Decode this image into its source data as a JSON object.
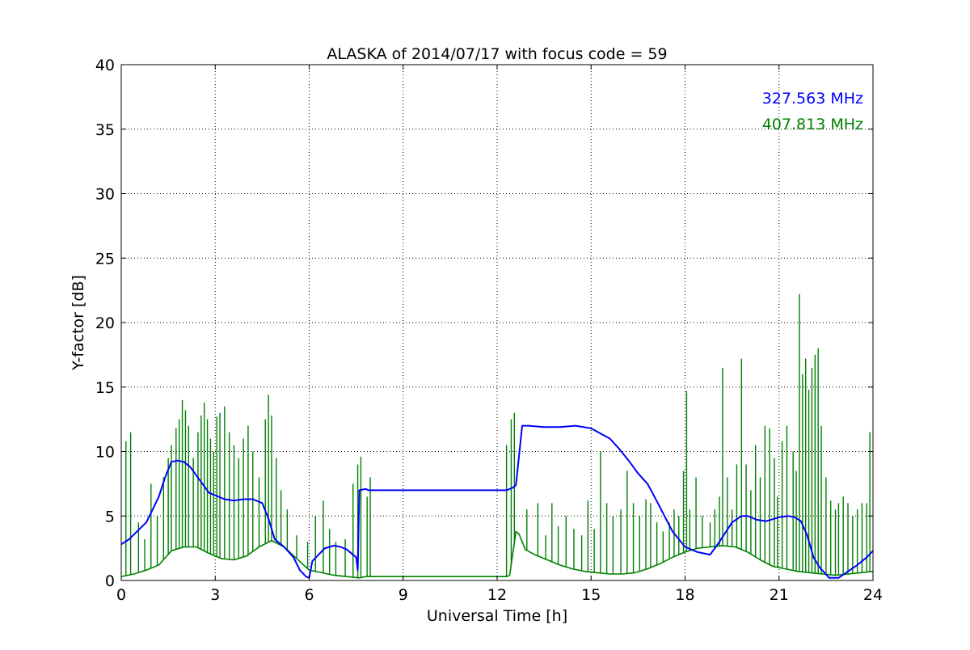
{
  "chart_data": {
    "type": "line",
    "title": "ALASKA of 2014/07/17 with focus code = 59",
    "xlabel": "Universal Time [h]",
    "ylabel": "Y-factor [dB]",
    "xlim": [
      0,
      24
    ],
    "ylim": [
      0,
      40
    ],
    "xticks": [
      0,
      3,
      6,
      9,
      12,
      15,
      18,
      21,
      24
    ],
    "yticks": [
      0,
      5,
      10,
      15,
      20,
      25,
      30,
      35,
      40
    ],
    "grid": true,
    "legend_position": "top-right",
    "series": [
      {
        "name": "327.563 MHz",
        "color": "#0000ff",
        "x": [
          0,
          0.25,
          0.5,
          0.8,
          1.0,
          1.2,
          1.4,
          1.6,
          1.8,
          2.0,
          2.2,
          2.5,
          2.8,
          3.0,
          3.3,
          3.6,
          3.9,
          4.2,
          4.5,
          4.7,
          4.9,
          5.2,
          5.5,
          5.7,
          5.9,
          6.0,
          6.1,
          6.3,
          6.5,
          6.8,
          7.0,
          7.2,
          7.5,
          7.55,
          7.6,
          7.8,
          7.9,
          8.0,
          12.3,
          12.5,
          12.6,
          12.8,
          13.0,
          13.5,
          14.0,
          14.5,
          15.0,
          15.3,
          15.6,
          15.9,
          16.2,
          16.5,
          16.8,
          17.0,
          17.3,
          17.6,
          18.0,
          18.4,
          18.8,
          19.1,
          19.5,
          19.8,
          20.0,
          20.3,
          20.6,
          21.0,
          21.3,
          21.5,
          21.7,
          21.9,
          22.1,
          22.3,
          22.6,
          22.9,
          23.2,
          23.5,
          23.8,
          24.0
        ],
        "y": [
          2.8,
          3.2,
          3.8,
          4.5,
          5.5,
          6.5,
          8.0,
          9.2,
          9.3,
          9.2,
          8.8,
          7.8,
          6.8,
          6.6,
          6.3,
          6.2,
          6.3,
          6.3,
          6.0,
          4.8,
          3.2,
          2.6,
          1.8,
          0.8,
          0.3,
          0.2,
          1.5,
          2.0,
          2.5,
          2.7,
          2.6,
          2.4,
          1.8,
          0.8,
          7.0,
          7.1,
          7.0,
          7.0,
          7.0,
          7.2,
          7.4,
          12.0,
          12.0,
          11.9,
          11.9,
          12.0,
          11.8,
          11.4,
          11.0,
          10.2,
          9.3,
          8.3,
          7.5,
          6.6,
          5.2,
          3.8,
          2.6,
          2.2,
          2.0,
          3.0,
          4.5,
          5.0,
          5.0,
          4.7,
          4.6,
          4.9,
          5.0,
          4.9,
          4.6,
          3.5,
          1.8,
          1.0,
          0.2,
          0.2,
          0.7,
          1.2,
          1.8,
          2.3
        ]
      },
      {
        "name": "407.813 MHz",
        "color": "#008000",
        "x": [
          0,
          0.4,
          0.8,
          1.2,
          1.6,
          2.0,
          2.4,
          2.8,
          3.2,
          3.6,
          4.0,
          4.4,
          4.8,
          5.2,
          5.6,
          6.0,
          6.4,
          6.8,
          7.2,
          7.6,
          7.8,
          8.0,
          12.3,
          12.4,
          12.6,
          12.7,
          12.9,
          13.2,
          13.6,
          14.0,
          14.4,
          14.8,
          15.2,
          15.6,
          16.0,
          16.4,
          16.8,
          17.2,
          17.6,
          18.0,
          18.4,
          18.8,
          19.2,
          19.6,
          20.0,
          20.4,
          20.8,
          21.2,
          21.6,
          22.0,
          22.4,
          22.8,
          23.2,
          23.6,
          24.0
        ],
        "y": [
          0.3,
          0.5,
          0.8,
          1.2,
          2.3,
          2.6,
          2.6,
          2.1,
          1.7,
          1.6,
          1.9,
          2.6,
          3.1,
          2.6,
          1.7,
          0.8,
          0.6,
          0.4,
          0.3,
          0.2,
          0.3,
          0.3,
          0.3,
          0.4,
          3.8,
          3.6,
          2.4,
          2.0,
          1.6,
          1.2,
          0.9,
          0.7,
          0.6,
          0.5,
          0.5,
          0.6,
          0.9,
          1.3,
          1.8,
          2.2,
          2.5,
          2.6,
          2.7,
          2.6,
          2.2,
          1.6,
          1.1,
          0.9,
          0.7,
          0.6,
          0.5,
          0.4,
          0.5,
          0.6,
          0.7
        ],
        "spikes": [
          [
            0.15,
            10.8
          ],
          [
            0.3,
            11.5
          ],
          [
            0.55,
            4.5
          ],
          [
            0.75,
            3.2
          ],
          [
            0.95,
            7.5
          ],
          [
            1.15,
            5.0
          ],
          [
            1.35,
            8.0
          ],
          [
            1.5,
            9.5
          ],
          [
            1.6,
            10.5
          ],
          [
            1.75,
            11.8
          ],
          [
            1.85,
            12.5
          ],
          [
            1.95,
            14.0
          ],
          [
            2.05,
            13.2
          ],
          [
            2.15,
            12.0
          ],
          [
            2.3,
            9.5
          ],
          [
            2.45,
            11.5
          ],
          [
            2.55,
            12.8
          ],
          [
            2.65,
            13.8
          ],
          [
            2.75,
            12.5
          ],
          [
            2.85,
            11.0
          ],
          [
            2.95,
            10.0
          ],
          [
            3.05,
            12.7
          ],
          [
            3.15,
            13.0
          ],
          [
            3.3,
            13.5
          ],
          [
            3.45,
            11.5
          ],
          [
            3.6,
            10.5
          ],
          [
            3.75,
            9.5
          ],
          [
            3.9,
            11.0
          ],
          [
            4.05,
            12.0
          ],
          [
            4.2,
            10.0
          ],
          [
            4.4,
            8.0
          ],
          [
            4.6,
            12.5
          ],
          [
            4.7,
            14.4
          ],
          [
            4.8,
            12.8
          ],
          [
            4.95,
            9.5
          ],
          [
            5.1,
            7.0
          ],
          [
            5.3,
            5.5
          ],
          [
            5.6,
            3.5
          ],
          [
            5.95,
            3.0
          ],
          [
            6.2,
            5.0
          ],
          [
            6.45,
            6.2
          ],
          [
            6.65,
            4.0
          ],
          [
            6.85,
            3.0
          ],
          [
            7.15,
            3.2
          ],
          [
            7.4,
            7.5
          ],
          [
            7.55,
            9.0
          ],
          [
            7.65,
            9.6
          ],
          [
            7.85,
            6.5
          ],
          [
            7.95,
            8.0
          ],
          [
            12.3,
            10.5
          ],
          [
            12.45,
            12.5
          ],
          [
            12.55,
            13.0
          ],
          [
            12.95,
            5.5
          ],
          [
            13.3,
            6.0
          ],
          [
            13.55,
            3.5
          ],
          [
            13.75,
            6.0
          ],
          [
            13.95,
            4.2
          ],
          [
            14.2,
            5.0
          ],
          [
            14.45,
            4.0
          ],
          [
            14.7,
            3.5
          ],
          [
            14.9,
            6.2
          ],
          [
            15.1,
            4.0
          ],
          [
            15.3,
            10.0
          ],
          [
            15.5,
            6.0
          ],
          [
            15.7,
            5.0
          ],
          [
            15.95,
            5.5
          ],
          [
            16.15,
            8.5
          ],
          [
            16.35,
            6.0
          ],
          [
            16.55,
            5.0
          ],
          [
            16.75,
            6.3
          ],
          [
            16.9,
            6.0
          ],
          [
            17.1,
            4.5
          ],
          [
            17.3,
            3.8
          ],
          [
            17.5,
            4.5
          ],
          [
            17.65,
            5.5
          ],
          [
            17.8,
            5.0
          ],
          [
            17.95,
            8.5
          ],
          [
            18.05,
            14.7
          ],
          [
            18.15,
            5.5
          ],
          [
            18.35,
            8.0
          ],
          [
            18.55,
            5.0
          ],
          [
            18.8,
            4.5
          ],
          [
            18.95,
            5.5
          ],
          [
            19.1,
            6.5
          ],
          [
            19.2,
            16.5
          ],
          [
            19.35,
            8.0
          ],
          [
            19.5,
            5.5
          ],
          [
            19.65,
            9.0
          ],
          [
            19.8,
            17.2
          ],
          [
            19.95,
            9.0
          ],
          [
            20.1,
            7.0
          ],
          [
            20.25,
            10.5
          ],
          [
            20.4,
            8.0
          ],
          [
            20.55,
            12.0
          ],
          [
            20.7,
            11.8
          ],
          [
            20.85,
            9.5
          ],
          [
            20.95,
            6.5
          ],
          [
            21.1,
            10.8
          ],
          [
            21.25,
            12.0
          ],
          [
            21.45,
            10.0
          ],
          [
            21.55,
            8.5
          ],
          [
            21.65,
            22.2
          ],
          [
            21.75,
            16.0
          ],
          [
            21.85,
            17.2
          ],
          [
            21.95,
            14.8
          ],
          [
            22.05,
            16.5
          ],
          [
            22.15,
            17.5
          ],
          [
            22.25,
            18.0
          ],
          [
            22.35,
            12.0
          ],
          [
            22.5,
            8.0
          ],
          [
            22.65,
            6.2
          ],
          [
            22.8,
            5.5
          ],
          [
            22.9,
            6.0
          ],
          [
            23.05,
            6.5
          ],
          [
            23.2,
            6.0
          ],
          [
            23.35,
            5.0
          ],
          [
            23.5,
            5.5
          ],
          [
            23.65,
            6.0
          ],
          [
            23.8,
            6.0
          ],
          [
            23.9,
            11.5
          ]
        ]
      }
    ]
  }
}
